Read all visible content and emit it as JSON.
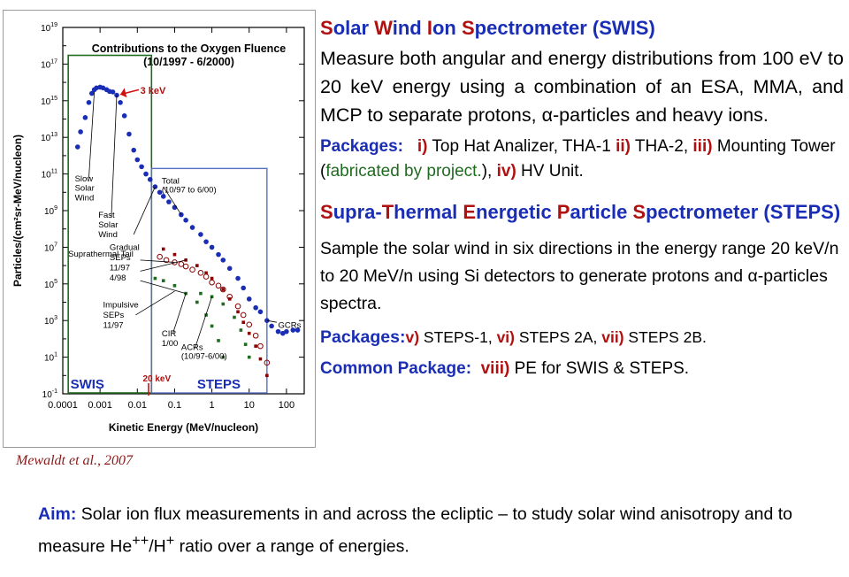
{
  "chart_data": {
    "type": "scatter",
    "title": "Contributions to the Oxygen Fluence",
    "subtitle": "(10/1997 - 6/2000)",
    "xlabel": "Kinetic Energy (MeV/nucleon)",
    "ylabel": "Particles/(cm²sr-MeV/nucleon)",
    "xscale": "log",
    "yscale": "log",
    "xlim": [
      0.0001,
      300
    ],
    "ylim": [
      0.1,
      10000000000000000000
    ],
    "xticks": [
      {
        "v": 0.0001,
        "label": "0.0001"
      },
      {
        "v": 0.001,
        "label": "0.001"
      },
      {
        "v": 0.01,
        "label": "0.01"
      },
      {
        "v": 0.1,
        "label": "0.1"
      },
      {
        "v": 1,
        "label": "1"
      },
      {
        "v": 10,
        "label": "10"
      },
      {
        "v": 100,
        "label": "100"
      }
    ],
    "yticks": [
      {
        "v": 0.1,
        "base": "10",
        "exp": "-1"
      },
      {
        "v": 10,
        "base": "10",
        "exp": "1"
      },
      {
        "v": 1000,
        "base": "10",
        "exp": "3"
      },
      {
        "v": 100000,
        "base": "10",
        "exp": "5"
      },
      {
        "v": 10000000,
        "base": "10",
        "exp": "7"
      },
      {
        "v": 1000000000,
        "base": "10",
        "exp": "9"
      },
      {
        "v": 100000000000,
        "base": "10",
        "exp": "11"
      },
      {
        "v": 10000000000000,
        "base": "10",
        "exp": "13"
      },
      {
        "v": 1000000000000000,
        "base": "10",
        "exp": "15"
      },
      {
        "v": 100000000000000000,
        "base": "10",
        "exp": "17"
      },
      {
        "v": 10000000000000000000,
        "base": "10",
        "exp": "19"
      }
    ],
    "series": [
      {
        "color": "#1a2db5",
        "marker": "filled-circle",
        "points": [
          [
            0.00025,
            3000000000000.0
          ],
          [
            0.0003,
            20000000000000.0
          ],
          [
            0.0004,
            120000000000000.0
          ],
          [
            0.0005,
            800000000000000.0
          ],
          [
            0.0006,
            2500000000000000.0
          ],
          [
            0.0007,
            4000000000000000.0
          ],
          [
            0.0008,
            5000000000000000.0
          ],
          [
            0.001,
            5500000000000000.0
          ],
          [
            0.0012,
            5000000000000000.0
          ],
          [
            0.0015,
            4000000000000000.0
          ],
          [
            0.0018,
            3200000000000000.0
          ],
          [
            0.0022,
            3000000000000000.0
          ],
          [
            0.0028,
            2000000000000000.0
          ],
          [
            0.0035,
            800000000000000.0
          ],
          [
            0.0045,
            150000000000000.0
          ],
          [
            0.006,
            15000000000000.0
          ],
          [
            0.008,
            2000000000000.0
          ],
          [
            0.01,
            600000000000.0
          ],
          [
            0.013,
            250000000000.0
          ],
          [
            0.017,
            100000000000.0
          ],
          [
            0.022,
            50000000000.0
          ],
          [
            0.03,
            20000000000.0
          ],
          [
            0.04,
            10000000000.0
          ],
          [
            0.05,
            6000000000.0
          ],
          [
            0.07,
            3000000000.0
          ],
          [
            0.1,
            1500000000.0
          ],
          [
            0.15,
            600000000.0
          ],
          [
            0.2,
            300000000.0
          ],
          [
            0.3,
            120000000.0
          ],
          [
            0.5,
            50000000.0
          ],
          [
            0.7,
            20000000.0
          ],
          [
            1,
            10000000.0
          ],
          [
            1.5,
            4000000.0
          ],
          [
            2,
            2000000.0
          ],
          [
            3,
            700000.0
          ],
          [
            5,
            200000.0
          ],
          [
            7,
            60000.0
          ],
          [
            10,
            15000.0
          ],
          [
            15,
            5000
          ],
          [
            20,
            3000
          ],
          [
            30,
            1000
          ],
          [
            40,
            500
          ],
          [
            60,
            250
          ],
          [
            80,
            200
          ],
          [
            100,
            250
          ],
          [
            150,
            300
          ],
          [
            200,
            300
          ]
        ]
      },
      {
        "color": "#8b0000",
        "marker": "open-circle",
        "points": [
          [
            0.04,
            3000000.0
          ],
          [
            0.06,
            2000000.0
          ],
          [
            0.1,
            1500000.0
          ],
          [
            0.15,
            1200000.0
          ],
          [
            0.2,
            900000.0
          ],
          [
            0.3,
            600000.0
          ],
          [
            0.5,
            400000.0
          ],
          [
            0.7,
            250000.0
          ],
          [
            1,
            120000.0
          ],
          [
            1.5,
            80000.0
          ],
          [
            2,
            50000.0
          ],
          [
            3,
            20000.0
          ],
          [
            5,
            6000
          ],
          [
            7,
            2000
          ],
          [
            10,
            600
          ],
          [
            15,
            150
          ],
          [
            20,
            40
          ],
          [
            30,
            5
          ]
        ]
      },
      {
        "color": "#8b0000",
        "marker": "dash",
        "points": [
          [
            0.05,
            8000000.0
          ],
          [
            0.1,
            4000000.0
          ],
          [
            0.2,
            2000000.0
          ],
          [
            0.4,
            1000000.0
          ],
          [
            0.7,
            400000.0
          ],
          [
            1,
            200000.0
          ],
          [
            2,
            50000.0
          ],
          [
            3,
            15000.0
          ],
          [
            5,
            3000
          ],
          [
            7,
            800
          ],
          [
            10,
            200
          ],
          [
            15,
            40
          ],
          [
            20,
            8
          ],
          [
            30,
            1
          ]
        ]
      },
      {
        "color": "#1f6b1f",
        "marker": "dash",
        "points": [
          [
            0.03,
            200000.0
          ],
          [
            0.05,
            150000.0
          ],
          [
            0.1,
            80000.0
          ],
          [
            0.2,
            30000.0
          ],
          [
            0.4,
            10000.0
          ],
          [
            0.7,
            2000
          ],
          [
            1,
            500
          ],
          [
            1.5,
            80
          ],
          [
            2,
            10
          ]
        ]
      },
      {
        "color": "#1f6b1f",
        "marker": "dash",
        "points": [
          [
            0.5,
            30000.0
          ],
          [
            1,
            20000.0
          ],
          [
            2,
            8000
          ],
          [
            4,
            1500
          ],
          [
            6,
            300
          ],
          [
            8,
            50
          ],
          [
            10,
            10
          ]
        ]
      }
    ],
    "annotations": [
      {
        "text": "Slow",
        "x": 0.00021,
        "y": 40000000000.0
      },
      {
        "text": "Solar",
        "x": 0.00021,
        "y": 12000000000.0
      },
      {
        "text": "Wind",
        "x": 0.00021,
        "y": 3500000000.0
      },
      {
        "text": "Fast",
        "x": 0.0009,
        "y": 400000000.0
      },
      {
        "text": "Solar",
        "x": 0.0009,
        "y": 120000000.0
      },
      {
        "text": "Wind",
        "x": 0.0009,
        "y": 35000000.0
      },
      {
        "text": "Suprathermal Tail",
        "x": 0.00014,
        "y": 3000000.0
      },
      {
        "text": "Total",
        "x": 0.045,
        "y": 30000000000.0
      },
      {
        "text": "(10/97 to 6/00)",
        "x": 0.045,
        "y": 10000000000.0
      },
      {
        "text": "Gradual",
        "x": 0.0018,
        "y": 7000000.0
      },
      {
        "text": "SEPs",
        "x": 0.0018,
        "y": 2000000.0
      },
      {
        "text": "11/97",
        "x": 0.0018,
        "y": 550000.0
      },
      {
        "text": "4/98",
        "x": 0.0018,
        "y": 150000.0
      },
      {
        "text": "Impulsive",
        "x": 0.0012,
        "y": 5000
      },
      {
        "text": "SEPs",
        "x": 0.0012,
        "y": 1400
      },
      {
        "text": "11/97",
        "x": 0.0012,
        "y": 400
      },
      {
        "text": "CIR",
        "x": 0.045,
        "y": 140
      },
      {
        "text": "1/00",
        "x": 0.045,
        "y": 40
      },
      {
        "text": "ACRs",
        "x": 0.15,
        "y": 25
      },
      {
        "text": "(10/97-6/00)",
        "x": 0.15,
        "y": 8
      },
      {
        "text": "GCRs",
        "x": 60,
        "y": 400
      }
    ],
    "region_labels": {
      "swis": "SWIS",
      "steps": "STEPS",
      "marker_3kev": "3 keV",
      "marker_20kev": "20 keV"
    }
  },
  "credit": "Mewaldt et al., 2007",
  "swis": {
    "title_parts": [
      "S",
      "olar ",
      "W",
      "ind ",
      "I",
      "on ",
      "S",
      "pectrometer (SWIS)"
    ],
    "description": "Measure both angular and energy distributions from 100 eV to 20 keV energy using a combination of an ESA, MMA, and MCP to separate protons, α-particles and heavy ions.",
    "packages_label": "Packages:",
    "pkg_i": "i)",
    "pkg_i_text": " Top Hat Analizer, THA-1 ",
    "pkg_ii": "ii)",
    "pkg_ii_text": " THA-2, ",
    "pkg_iii": "iii)",
    "pkg_iii_text": " Mounting Tower (",
    "pkg_iii_note": "fabricated by project.",
    "pkg_iii_close": "), ",
    "pkg_iv": "iv)",
    "pkg_iv_text": " HV Unit."
  },
  "steps": {
    "title_parts": [
      "S",
      "upra-",
      "T",
      "hermal ",
      "E",
      "nergetic ",
      "P",
      "article ",
      "S",
      "pectrometer (STEPS)"
    ],
    "description": "Sample the solar wind in six directions in the energy range 20 keV/n to 20 MeV/n  using Si detectors to generate  protons and α-particles spectra.",
    "packages_label": "Packages:",
    "pkg_v": "v)",
    "pkg_v_text": " STEPS-1,  ",
    "pkg_vi": "vi)",
    "pkg_vi_text": " STEPS 2A,  ",
    "pkg_vii": "vii)",
    "pkg_vii_text": " STEPS 2B."
  },
  "common": {
    "label": "Common Package:",
    "num": "viii)",
    "text": " PE for SWIS & STEPS."
  },
  "aim": {
    "label": "Aim:",
    "text1": " Solar ion flux measurements in and across the ecliptic  – to study solar wind anisotropy and to measure He",
    "sup1": "++",
    "text2": "/H",
    "sup2": "+",
    "text3": " ratio over a range of energies."
  }
}
